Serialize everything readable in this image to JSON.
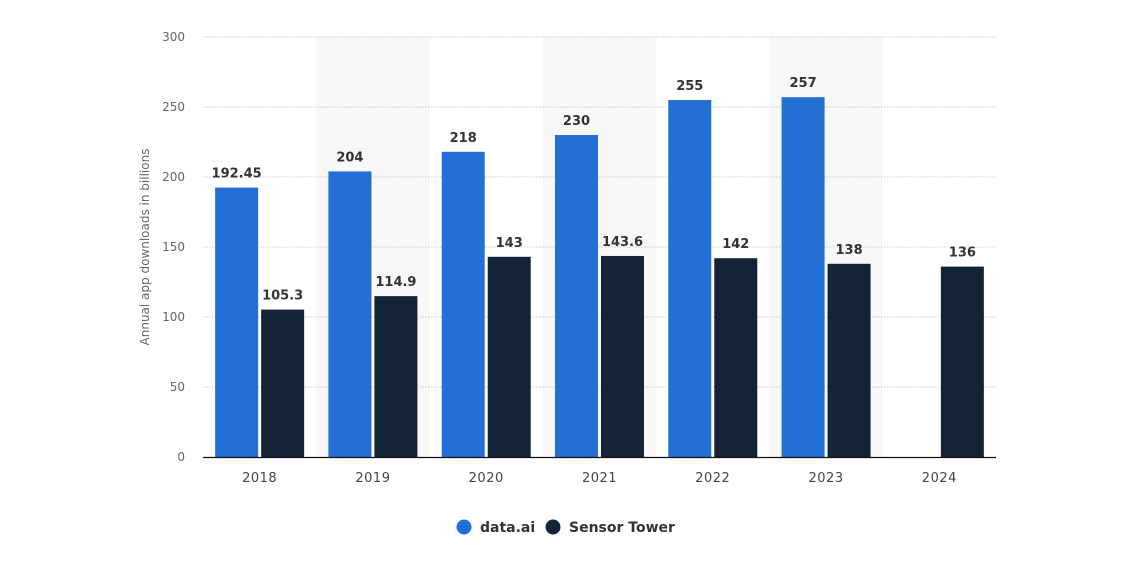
{
  "chart_data": {
    "type": "bar",
    "title": "",
    "xlabel": "",
    "ylabel": "Annual app downloads in billions",
    "ylim": [
      0,
      300
    ],
    "yticks": [
      0,
      50,
      100,
      150,
      200,
      250,
      300
    ],
    "grid": true,
    "legend_position": "bottom",
    "categories": [
      "2018",
      "2019",
      "2020",
      "2021",
      "2022",
      "2023",
      "2024"
    ],
    "series": [
      {
        "name": "data.ai",
        "color": "#236fd6",
        "values": [
          192.45,
          204,
          218,
          230,
          255,
          257,
          null
        ],
        "labels": [
          "192.45",
          "204",
          "218",
          "230",
          "255",
          "257",
          null
        ]
      },
      {
        "name": "Sensor Tower",
        "color": "#132436",
        "values": [
          105.3,
          114.9,
          143,
          143.6,
          142,
          138,
          136
        ],
        "labels": [
          "105.3",
          "114.9",
          "143",
          "143.6",
          "142",
          "138",
          "136"
        ]
      }
    ]
  }
}
